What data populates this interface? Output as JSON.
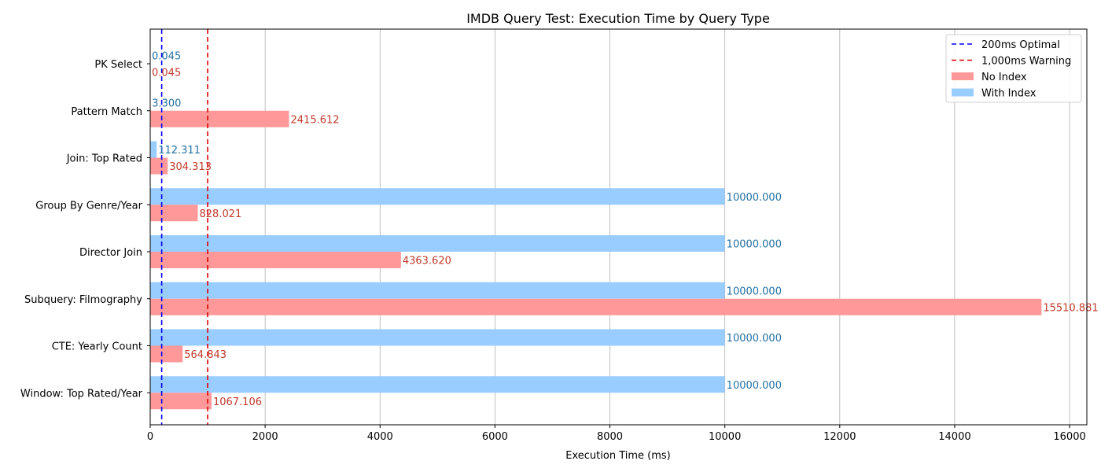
{
  "chart_data": {
    "type": "bar",
    "orientation": "horizontal",
    "title": "IMDB Query Test: Execution Time by Query Type",
    "xlabel": "Execution Time (ms)",
    "ylabel": "",
    "xlim": [
      0,
      16300
    ],
    "xticks": [
      0,
      2000,
      4000,
      6000,
      8000,
      10000,
      12000,
      14000,
      16000
    ],
    "grid": "vertical",
    "legend_position": "top-right",
    "categories": [
      "PK Select",
      "Pattern Match",
      "Join: Top Rated",
      "Group By Genre/Year",
      "Director Join",
      "Subquery: Filmography",
      "CTE: Yearly Count",
      "Window: Top Rated/Year"
    ],
    "series": [
      {
        "name": "No Index",
        "color": "#ff9999",
        "label_color": "#c0392b",
        "values": [
          0.045,
          2415.612,
          304.313,
          828.021,
          4363.62,
          15510.881,
          564.843,
          1067.106
        ],
        "labels": [
          "0.045",
          "2415.612",
          "304.313",
          "828.021",
          "4363.620",
          "15510.881",
          "564.843",
          "1067.106"
        ]
      },
      {
        "name": "With Index",
        "color": "#99ccff",
        "label_color": "#2471a3",
        "values": [
          0.045,
          3.3,
          112.311,
          10000.0,
          10000.0,
          10000.0,
          10000.0,
          10000.0
        ],
        "labels": [
          "0.045",
          "3.300",
          "112.311",
          "10000.000",
          "10000.000",
          "10000.000",
          "10000.000",
          "10000.000"
        ]
      }
    ],
    "reference_lines": [
      {
        "name": "200ms Optimal",
        "value": 200,
        "color": "#0000ff"
      },
      {
        "name": "1,000ms Warning",
        "value": 1000,
        "color": "#dd0000"
      }
    ]
  }
}
